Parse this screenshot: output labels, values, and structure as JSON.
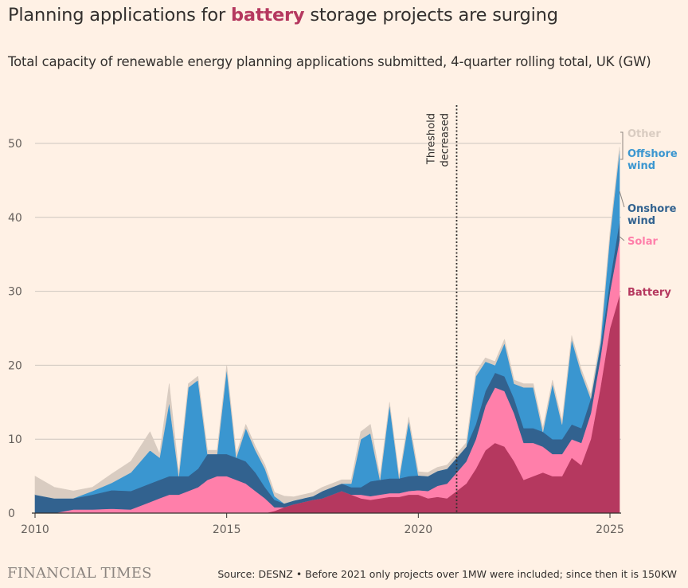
{
  "title": {
    "before": "Planning applications for ",
    "highlight": "battery",
    "after": " storage projects are surging"
  },
  "subtitle": "Total capacity of renewable energy planning applications submitted, 4-quarter rolling total, UK (GW)",
  "footer": {
    "logo": "FINANCIAL TIMES",
    "source": "Source: DESNZ • Before 2021 only projects over 1MW were included; since then it is 150KW"
  },
  "chart_data": {
    "type": "area",
    "stacked": true,
    "title": "Planning applications for battery storage projects are surging",
    "xlabel": "",
    "ylabel": "",
    "xlim": [
      2010,
      2025.5
    ],
    "ylim": [
      0,
      55
    ],
    "grid": true,
    "x_ticks": [
      2010,
      2015,
      2020,
      2025
    ],
    "y_ticks": [
      0,
      10,
      20,
      30,
      40,
      50
    ],
    "legend_placement": "right, end of series",
    "annotation": {
      "x": 2021.0,
      "lines": [
        "Threshold",
        "decreased"
      ]
    },
    "x": [
      2010.0,
      2010.5,
      2011.0,
      2011.5,
      2012.0,
      2012.5,
      2013.0,
      2013.25,
      2013.5,
      2013.75,
      2014.0,
      2014.25,
      2014.5,
      2014.75,
      2015.0,
      2015.25,
      2015.5,
      2015.75,
      2016.0,
      2016.25,
      2016.5,
      2016.75,
      2017.0,
      2017.25,
      2017.5,
      2017.75,
      2018.0,
      2018.25,
      2018.5,
      2018.75,
      2019.0,
      2019.25,
      2019.5,
      2019.75,
      2020.0,
      2020.25,
      2020.5,
      2020.75,
      2021.0,
      2021.25,
      2021.5,
      2021.75,
      2022.0,
      2022.25,
      2022.5,
      2022.75,
      2023.0,
      2023.25,
      2023.5,
      2023.75,
      2024.0,
      2024.25,
      2024.5,
      2024.75,
      2025.0,
      2025.25
    ],
    "series": [
      {
        "name": "Battery",
        "color": "#B5385F",
        "values": [
          0,
          0,
          0,
          0,
          0,
          0,
          0,
          0,
          0,
          0,
          0,
          0,
          0,
          0,
          0,
          0,
          0,
          0,
          0,
          0.3,
          0.8,
          1.2,
          1.5,
          1.8,
          2.0,
          2.5,
          3.0,
          2.5,
          2.0,
          1.8,
          2.0,
          2.2,
          2.2,
          2.5,
          2.5,
          2.0,
          2.2,
          2.0,
          3.0,
          4.0,
          6.0,
          8.5,
          9.5,
          9.0,
          7.0,
          4.5,
          5.0,
          5.5,
          5.0,
          5.0,
          7.5,
          6.5,
          10.0,
          17.0,
          25.0,
          29.5
        ]
      },
      {
        "name": "Solar",
        "color": "#FF7FAA",
        "values": [
          0,
          0,
          0.5,
          0.5,
          0.6,
          0.5,
          1.5,
          2.0,
          2.5,
          2.5,
          3.0,
          3.5,
          4.5,
          5.0,
          5.0,
          4.5,
          4.0,
          3.0,
          2.0,
          0.5,
          0,
          0,
          0,
          0,
          0,
          0,
          0,
          0,
          0.5,
          0.5,
          0.5,
          0.5,
          0.5,
          0.5,
          0.6,
          1.0,
          1.5,
          2.0,
          2.5,
          3.0,
          4.0,
          6.0,
          7.5,
          7.5,
          6.5,
          5.0,
          4.5,
          3.5,
          3.0,
          3.0,
          2.5,
          3.0,
          3.5,
          4.0,
          5.0,
          7.5
        ]
      },
      {
        "name": "Onshore wind",
        "color": "#32628F",
        "values": [
          2.5,
          2.0,
          1.5,
          2.0,
          2.5,
          2.5,
          2.5,
          2.5,
          2.5,
          2.5,
          2.0,
          2.5,
          3.5,
          3.0,
          3.0,
          3.0,
          3.0,
          2.5,
          1.5,
          1.0,
          0.5,
          0.5,
          0.5,
          0.5,
          1.0,
          1.0,
          1.0,
          1.0,
          1.0,
          2.0,
          2.0,
          2.0,
          2.0,
          2.0,
          2.0,
          2.0,
          2.0,
          2.0,
          2.0,
          2.0,
          2.0,
          2.0,
          2.0,
          2.0,
          2.0,
          2.0,
          2.0,
          2.0,
          2.0,
          2.0,
          2.0,
          2.0,
          2.0,
          1.5,
          1.5,
          2.5
        ]
      },
      {
        "name": "Offshore wind",
        "color": "#3A96D0",
        "values": [
          0,
          0,
          0,
          0.5,
          1.0,
          2.5,
          4.5,
          3.0,
          10.0,
          0,
          12.0,
          12.0,
          0,
          0,
          11.5,
          0,
          4.5,
          3.0,
          2.5,
          0.5,
          0,
          0,
          0,
          0,
          0,
          0,
          0,
          0.5,
          6.5,
          6.5,
          0,
          10.0,
          0,
          7.5,
          0,
          0,
          0,
          0,
          0,
          0,
          6.5,
          4.0,
          1.0,
          4.5,
          2.0,
          5.5,
          5.5,
          0,
          7.5,
          2.0,
          11.5,
          7.5,
          0,
          0.5,
          6.0,
          9.5
        ]
      },
      {
        "name": "Other",
        "color": "#D9CCC1",
        "values": [
          2.5,
          1.5,
          1.0,
          0.5,
          1.2,
          1.5,
          2.5,
          0.5,
          2.5,
          0.5,
          0.5,
          0.5,
          0.5,
          0.5,
          0.5,
          0.5,
          0.5,
          0.5,
          0.5,
          0.5,
          1.0,
          0.5,
          0.5,
          0.5,
          0.5,
          0.5,
          0.5,
          0.5,
          1.0,
          1.2,
          0.5,
          0.3,
          0.3,
          0.5,
          0.5,
          0.5,
          0.5,
          0.5,
          0.5,
          0.5,
          0.5,
          0.5,
          0.5,
          0.5,
          0.5,
          0.5,
          0.5,
          0.5,
          0.5,
          0.5,
          0.5,
          0.5,
          0.5,
          0.5,
          0.5,
          0.5
        ]
      }
    ],
    "legend": [
      {
        "name": "Other",
        "lines": [
          "Other"
        ],
        "color": "#D9CCC1"
      },
      {
        "name": "Offshore wind",
        "lines": [
          "Offshore",
          "wind"
        ],
        "color": "#3A96D0"
      },
      {
        "name": "Onshore wind",
        "lines": [
          "Onshore",
          "wind"
        ],
        "color": "#32628F"
      },
      {
        "name": "Solar",
        "lines": [
          "Solar"
        ],
        "color": "#FF7FAA"
      },
      {
        "name": "Battery",
        "lines": [
          "Battery"
        ],
        "color": "#B5385F"
      }
    ]
  }
}
